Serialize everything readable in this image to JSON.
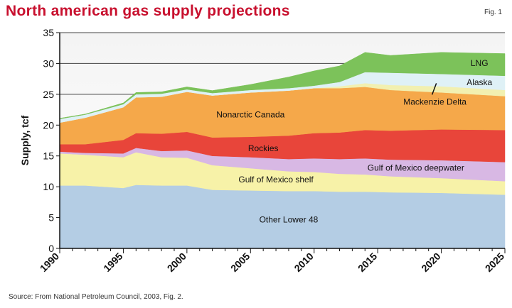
{
  "chart_data": {
    "type": "area",
    "stacked": true,
    "title": "North american gas supply projections",
    "figure_label": "Fig. 1",
    "source": "Source: From National Petroleum Council, 2003, Fig. 2.",
    "ylabel": "Supply, tcf",
    "xlabel": "",
    "xlim": [
      1990,
      2025
    ],
    "ylim": [
      0,
      35
    ],
    "xticks": [
      1990,
      1995,
      2000,
      2005,
      2010,
      2015,
      2020,
      2025
    ],
    "yticks": [
      0,
      5,
      10,
      15,
      20,
      25,
      30,
      35
    ],
    "grid": "horizontal",
    "x": [
      1990,
      1992,
      1995,
      1996,
      1998,
      2000,
      2002,
      2005,
      2008,
      2010,
      2012,
      2014,
      2016,
      2020,
      2025
    ],
    "series": [
      {
        "name": "Other Lower 48",
        "color": "#b4cde4",
        "values": [
          10.2,
          10.2,
          9.8,
          10.3,
          10.2,
          10.2,
          9.5,
          9.4,
          9.3,
          9.3,
          9.2,
          9.2,
          9.1,
          9.0,
          8.7
        ]
      },
      {
        "name": "Gulf of Mexico shelf",
        "color": "#f7f2a8",
        "values": [
          5.2,
          5.0,
          5.0,
          5.3,
          4.6,
          4.5,
          4.0,
          3.6,
          3.2,
          3.1,
          2.9,
          2.8,
          2.6,
          2.4,
          2.2
        ]
      },
      {
        "name": "Gulf of Mexico deepwater",
        "color": "#d8b8e4",
        "values": [
          0.3,
          0.3,
          0.6,
          0.7,
          1.0,
          1.2,
          1.5,
          1.8,
          2.0,
          2.2,
          2.4,
          2.6,
          2.7,
          2.9,
          3.1
        ]
      },
      {
        "name": "Rockies",
        "color": "#e8453a",
        "values": [
          1.2,
          1.4,
          2.2,
          2.4,
          2.8,
          3.0,
          3.0,
          3.3,
          3.8,
          4.1,
          4.3,
          4.6,
          4.7,
          5.0,
          5.2
        ]
      },
      {
        "name": "Nonarctic Canada",
        "color": "#f5a84a",
        "values": [
          3.5,
          4.3,
          5.3,
          5.8,
          6.0,
          6.5,
          6.8,
          7.2,
          7.3,
          7.3,
          7.2,
          7.0,
          6.6,
          6.0,
          5.5
        ]
      },
      {
        "name": "Mackenzie Delta",
        "color": "#f2f0b0",
        "values": [
          0,
          0,
          0,
          0,
          0,
          0,
          0,
          0,
          0,
          0,
          0.3,
          0.6,
          0.8,
          1.0,
          1.0
        ]
      },
      {
        "name": "Alaska",
        "color": "#dff1f6",
        "values": [
          0.6,
          0.5,
          0.5,
          0.5,
          0.5,
          0.4,
          0.4,
          0.4,
          0.4,
          0.4,
          0.7,
          1.8,
          2.0,
          2.0,
          2.3
        ]
      },
      {
        "name": "LNG",
        "color": "#7cc25a",
        "values": [
          0.1,
          0.1,
          0.2,
          0.3,
          0.3,
          0.4,
          0.4,
          0.9,
          1.8,
          2.4,
          2.6,
          3.2,
          2.8,
          3.5,
          3.6
        ]
      }
    ]
  }
}
